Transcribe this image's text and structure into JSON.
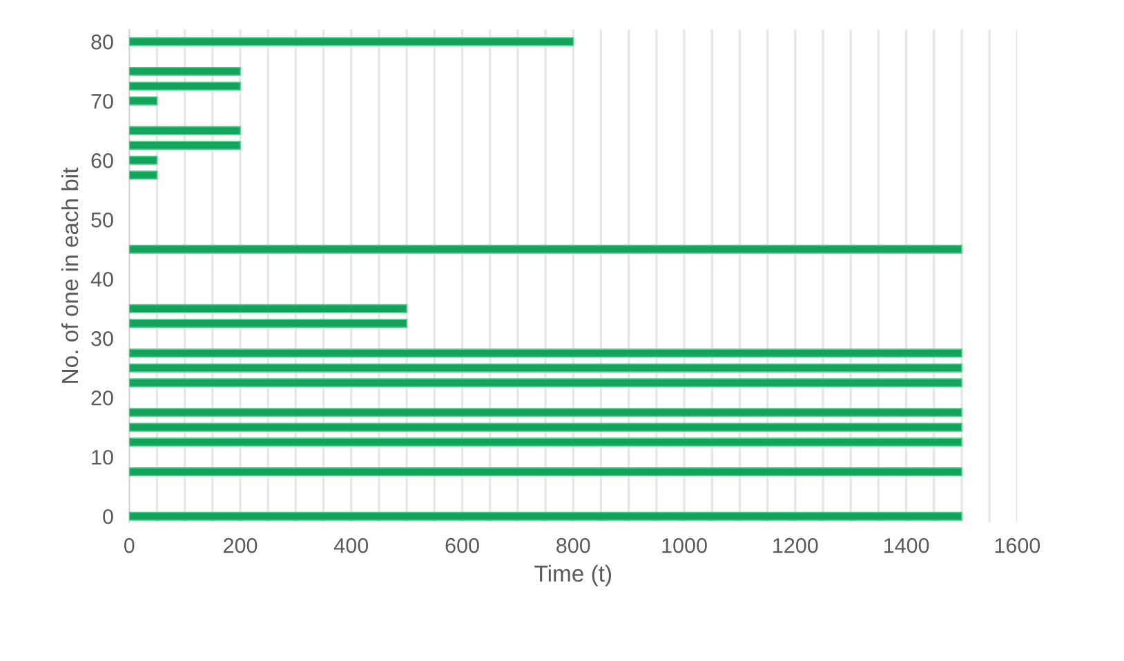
{
  "chart_data": {
    "type": "bar",
    "orientation": "horizontal",
    "xlabel": "Time (t)",
    "ylabel": "No. of one in each bit",
    "x": [
      0,
      7.5,
      12.5,
      15,
      17.5,
      22.5,
      25,
      27.5,
      32.5,
      35,
      45,
      57.5,
      60,
      62.5,
      65,
      70,
      72.5,
      75,
      80
    ],
    "values": [
      1500,
      1500,
      1500,
      1500,
      1500,
      1500,
      1500,
      1500,
      500,
      500,
      1500,
      50,
      50,
      200,
      200,
      50,
      200,
      200,
      800
    ],
    "color": "#14a35c",
    "xlim": [
      0,
      1600
    ],
    "xticks": [
      0,
      {
        "value": 50,
        "label": null
      },
      {
        "value": 100,
        "label": null
      },
      {
        "value": 150,
        "label": null
      },
      200,
      {
        "value": 250,
        "label": null
      },
      {
        "value": 300,
        "label": null
      },
      {
        "value": 350,
        "label": null
      },
      400,
      {
        "value": 450,
        "label": null
      },
      {
        "value": 500,
        "label": null
      },
      {
        "value": 550,
        "label": null
      },
      600,
      {
        "value": 650,
        "label": null
      },
      {
        "value": 700,
        "label": null
      },
      {
        "value": 750,
        "label": null
      },
      800,
      {
        "value": 850,
        "label": null
      },
      {
        "value": 900,
        "label": null
      },
      {
        "value": 950,
        "label": null
      },
      1000,
      {
        "value": 1050,
        "label": null
      },
      {
        "value": 1100,
        "label": null
      },
      {
        "value": 1150,
        "label": null
      },
      1200,
      {
        "value": 1250,
        "label": null
      },
      {
        "value": 1300,
        "label": null
      },
      {
        "value": 1350,
        "label": null
      },
      1400,
      {
        "value": 1450,
        "label": null
      },
      {
        "value": 1500,
        "label": null
      },
      {
        "value": 1550,
        "label": null
      },
      1600
    ],
    "ylim": [
      -1,
      82
    ],
    "yticks": [
      0,
      10,
      20,
      30,
      40,
      50,
      60,
      70,
      80
    ],
    "grid": "x"
  }
}
